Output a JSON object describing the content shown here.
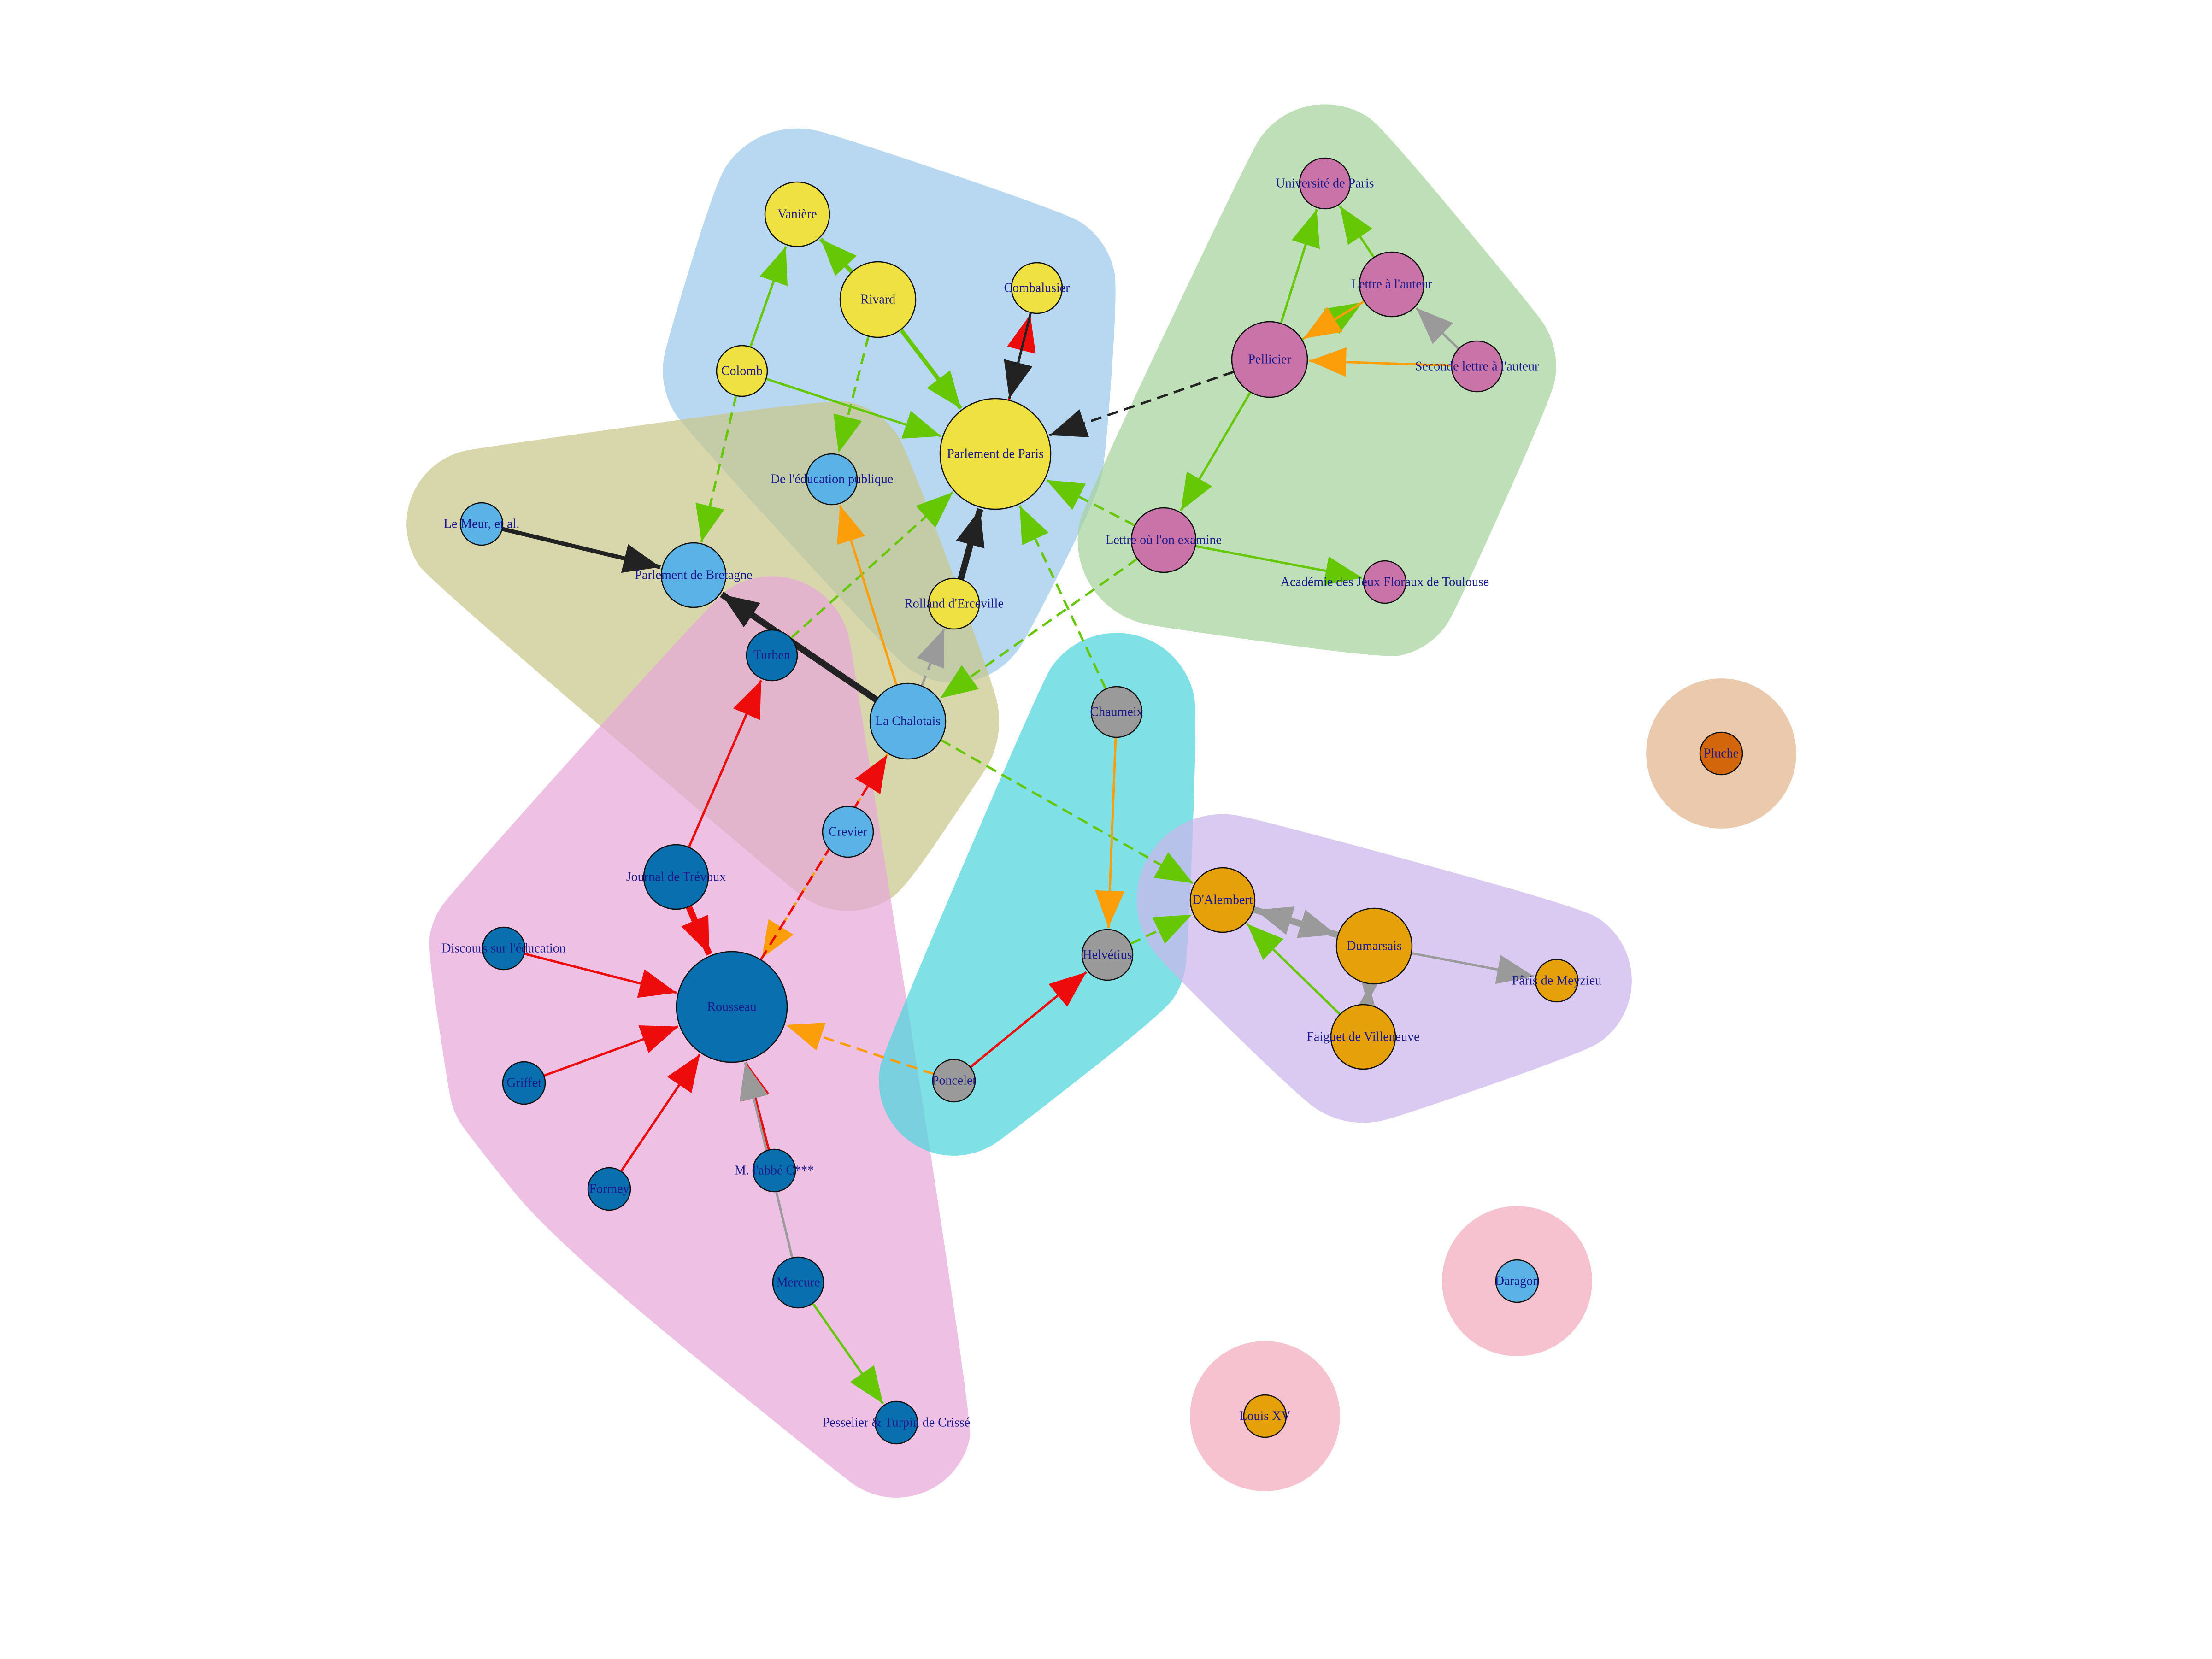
{
  "colors": {
    "community_blue": "#9cc8ec",
    "community_green": "#a6d39c",
    "community_olive": "#c9c68a",
    "community_pink": "#e8a8da",
    "community_cyan": "#4dd6dc",
    "community_purple": "#ccb5ec",
    "community_tan": "#e3b48e",
    "community_rose": "#f2aabd",
    "node_yellow": "#efe142",
    "node_magenta": "#c973a8",
    "node_light_blue": "#5ab2e6",
    "node_dark_blue": "#0a6fae",
    "node_gray": "#9a9a9a",
    "node_orange": "#e5a00a",
    "node_dark_orange": "#d3650a",
    "edge_green": "#66c805",
    "edge_red": "#ee0b0b",
    "edge_orange": "#fb9e0a",
    "edge_black": "#222222",
    "edge_gray": "#9a9a9a",
    "label_text": "#1a1a8c"
  },
  "communities": [
    {
      "id": "blue",
      "color": "community_blue",
      "members": [
        "vaniere",
        "rivard",
        "combalusier",
        "colomb",
        "parlement_paris",
        "rolland"
      ]
    },
    {
      "id": "green",
      "color": "community_green",
      "members": [
        "universite",
        "lettre_auteur",
        "pellicier",
        "seconde_lettre",
        "lettre_examine",
        "academie"
      ]
    },
    {
      "id": "olive",
      "color": "community_olive",
      "members": [
        "le_meur",
        "parlement_bretagne",
        "education_publique",
        "la_chalotais",
        "crevier"
      ]
    },
    {
      "id": "pink",
      "color": "community_pink",
      "members": [
        "turben",
        "journal_trevoux",
        "discours",
        "rousseau",
        "griffet",
        "formey",
        "abbe",
        "mercure",
        "pesselier"
      ]
    },
    {
      "id": "cyan",
      "color": "community_cyan",
      "members": [
        "chaumeix",
        "helvetius",
        "poncelet"
      ]
    },
    {
      "id": "purple",
      "color": "community_purple",
      "members": [
        "dalembert",
        "dumarsais",
        "paris_meyzieu",
        "faiguet"
      ]
    },
    {
      "id": "tan",
      "color": "community_tan",
      "members": [
        "pluche"
      ]
    },
    {
      "id": "rose1",
      "color": "community_rose",
      "members": [
        "daragon"
      ]
    },
    {
      "id": "rose2",
      "color": "community_rose",
      "members": [
        "louis_xv"
      ]
    }
  ],
  "nodes": [
    {
      "id": "vaniere",
      "label": "Vanière",
      "color": "node_yellow",
      "size": "medium"
    },
    {
      "id": "rivard",
      "label": "Rivard",
      "color": "node_yellow",
      "size": "large"
    },
    {
      "id": "combalusier",
      "label": "Combalusier",
      "color": "node_yellow",
      "size": "small"
    },
    {
      "id": "colomb",
      "label": "Colomb",
      "color": "node_yellow",
      "size": "small"
    },
    {
      "id": "parlement_paris",
      "label": "Parlement de Paris",
      "color": "node_yellow",
      "size": "xlarge"
    },
    {
      "id": "rolland",
      "label": "Rolland d'Erceville",
      "color": "node_yellow",
      "size": "small"
    },
    {
      "id": "universite",
      "label": "Université de Paris",
      "color": "node_magenta",
      "size": "small"
    },
    {
      "id": "lettre_auteur",
      "label": "Lettre à l'auteur",
      "color": "node_magenta",
      "size": "medium"
    },
    {
      "id": "pellicier",
      "label": "Pellicier",
      "color": "node_magenta",
      "size": "large"
    },
    {
      "id": "seconde_lettre",
      "label": "Seconde lettre à l'auteur",
      "color": "node_magenta",
      "size": "small"
    },
    {
      "id": "lettre_examine",
      "label": "Lettre où l'on examine",
      "color": "node_magenta",
      "size": "medium"
    },
    {
      "id": "academie",
      "label": "Académie des Jeux Floraux de Toulouse",
      "color": "node_magenta",
      "size": "tiny"
    },
    {
      "id": "le_meur",
      "label": "Le Meur, et al.",
      "color": "node_light_blue",
      "size": "tiny"
    },
    {
      "id": "parlement_bretagne",
      "label": "Parlement de Bretagne",
      "color": "node_light_blue",
      "size": "medium"
    },
    {
      "id": "education_publique",
      "label": "De l'éducation publique",
      "color": "node_light_blue",
      "size": "small"
    },
    {
      "id": "la_chalotais",
      "label": "La Chalotais",
      "color": "node_light_blue",
      "size": "large"
    },
    {
      "id": "crevier",
      "label": "Crevier",
      "color": "node_light_blue",
      "size": "small"
    },
    {
      "id": "turben",
      "label": "Turben",
      "color": "node_dark_blue",
      "size": "small"
    },
    {
      "id": "journal_trevoux",
      "label": "Journal de Trévoux",
      "color": "node_dark_blue",
      "size": "medium"
    },
    {
      "id": "discours",
      "label": "Discours sur l'éducation",
      "color": "node_dark_blue",
      "size": "tiny"
    },
    {
      "id": "rousseau",
      "label": "Rousseau",
      "color": "node_dark_blue",
      "size": "xlarge"
    },
    {
      "id": "griffet",
      "label": "Griffet",
      "color": "node_dark_blue",
      "size": "tiny"
    },
    {
      "id": "formey",
      "label": "Formey",
      "color": "node_dark_blue",
      "size": "tiny"
    },
    {
      "id": "abbe",
      "label": "M. l'abbé C***",
      "color": "node_dark_blue",
      "size": "tiny"
    },
    {
      "id": "mercure",
      "label": "Mercure",
      "color": "node_dark_blue",
      "size": "small"
    },
    {
      "id": "pesselier",
      "label": "Pesselier & Turpin de Crissé",
      "color": "node_dark_blue",
      "size": "tiny"
    },
    {
      "id": "chaumeix",
      "label": "Chaumeix",
      "color": "node_gray",
      "size": "small"
    },
    {
      "id": "helvetius",
      "label": "Helvétius",
      "color": "node_gray",
      "size": "small"
    },
    {
      "id": "poncelet",
      "label": "Poncelet",
      "color": "node_gray",
      "size": "tiny"
    },
    {
      "id": "dalembert",
      "label": "D'Alembert",
      "color": "node_orange",
      "size": "medium"
    },
    {
      "id": "dumarsais",
      "label": "Dumarsais",
      "color": "node_orange",
      "size": "large"
    },
    {
      "id": "paris_meyzieu",
      "label": "Pâris de Meyzieu",
      "color": "node_orange",
      "size": "tiny"
    },
    {
      "id": "faiguet",
      "label": "Faiguet de Villeneuve",
      "color": "node_orange",
      "size": "medium"
    },
    {
      "id": "pluche",
      "label": "Pluche",
      "color": "node_dark_orange",
      "size": "tiny"
    },
    {
      "id": "daragon",
      "label": "Daragon",
      "color": "node_light_blue",
      "size": "tiny"
    },
    {
      "id": "louis_xv",
      "label": "Louis XV",
      "color": "node_orange",
      "size": "tiny"
    }
  ],
  "edges": [
    {
      "from": "colomb",
      "to": "vaniere",
      "color": "edge_green",
      "style": "solid",
      "weight": 1
    },
    {
      "from": "rivard",
      "to": "vaniere",
      "color": "edge_green",
      "style": "solid",
      "weight": 2
    },
    {
      "from": "rivard",
      "to": "parlement_paris",
      "color": "edge_green",
      "style": "solid",
      "weight": 2
    },
    {
      "from": "rivard",
      "to": "education_publique",
      "color": "edge_green",
      "style": "dashed",
      "weight": 1
    },
    {
      "from": "colomb",
      "to": "parlement_paris",
      "color": "edge_green",
      "style": "solid",
      "weight": 1
    },
    {
      "from": "colomb",
      "to": "parlement_bretagne",
      "color": "edge_green",
      "style": "dashed",
      "weight": 1
    },
    {
      "from": "parlement_paris",
      "to": "combalusier",
      "color": "edge_red",
      "style": "solid",
      "weight": 1
    },
    {
      "from": "combalusier",
      "to": "parlement_paris",
      "color": "edge_black",
      "style": "solid",
      "weight": 1
    },
    {
      "from": "rolland",
      "to": "parlement_paris",
      "color": "edge_black",
      "style": "solid",
      "weight": 3
    },
    {
      "from": "pellicier",
      "to": "parlement_paris",
      "color": "edge_black",
      "style": "dashed",
      "weight": 1
    },
    {
      "from": "lettre_examine",
      "to": "parlement_paris",
      "color": "edge_green",
      "style": "dashed",
      "weight": 1
    },
    {
      "from": "chaumeix",
      "to": "parlement_paris",
      "color": "edge_green",
      "style": "dashed",
      "weight": 1
    },
    {
      "from": "turben",
      "to": "parlement_paris",
      "color": "edge_green",
      "style": "dashed",
      "weight": 1
    },
    {
      "from": "pellicier",
      "to": "universite",
      "color": "edge_green",
      "style": "solid",
      "weight": 1
    },
    {
      "from": "lettre_auteur",
      "to": "universite",
      "color": "edge_green",
      "style": "solid",
      "weight": 1
    },
    {
      "from": "pellicier",
      "to": "lettre_auteur",
      "color": "edge_green",
      "style": "solid",
      "weight": 1
    },
    {
      "from": "lettre_auteur",
      "to": "pellicier",
      "color": "edge_orange",
      "style": "solid",
      "weight": 1
    },
    {
      "from": "seconde_lettre",
      "to": "pellicier",
      "color": "edge_orange",
      "style": "solid",
      "weight": 1
    },
    {
      "from": "seconde_lettre",
      "to": "lettre_auteur",
      "color": "edge_gray",
      "style": "solid",
      "weight": 1
    },
    {
      "from": "pellicier",
      "to": "lettre_examine",
      "color": "edge_green",
      "style": "solid",
      "weight": 1
    },
    {
      "from": "lettre_examine",
      "to": "academie",
      "color": "edge_green",
      "style": "solid",
      "weight": 1
    },
    {
      "from": "lettre_examine",
      "to": "la_chalotais",
      "color": "edge_green",
      "style": "dashed",
      "weight": 1
    },
    {
      "from": "le_meur",
      "to": "parlement_bretagne",
      "color": "edge_black",
      "style": "solid",
      "weight": 2
    },
    {
      "from": "la_chalotais",
      "to": "parlement_bretagne",
      "color": "edge_black",
      "style": "solid",
      "weight": 3
    },
    {
      "from": "la_chalotais",
      "to": "education_publique",
      "color": "edge_orange",
      "style": "solid",
      "weight": 1
    },
    {
      "from": "la_chalotais",
      "to": "rolland",
      "color": "edge_gray",
      "style": "dashed",
      "weight": 1
    },
    {
      "from": "la_chalotais",
      "to": "dalembert",
      "color": "edge_green",
      "style": "dashed",
      "weight": 1
    },
    {
      "from": "la_chalotais",
      "to": "rousseau",
      "color": "edge_orange",
      "style": "dashed",
      "weight": 1
    },
    {
      "from": "rousseau",
      "to": "la_chalotais",
      "color": "edge_red",
      "style": "dashed",
      "weight": 1
    },
    {
      "from": "journal_trevoux",
      "to": "turben",
      "color": "edge_red",
      "style": "solid",
      "weight": 1
    },
    {
      "from": "journal_trevoux",
      "to": "rousseau",
      "color": "edge_red",
      "style": "solid",
      "weight": 3
    },
    {
      "from": "discours",
      "to": "rousseau",
      "color": "edge_red",
      "style": "solid",
      "weight": 1
    },
    {
      "from": "griffet",
      "to": "rousseau",
      "color": "edge_red",
      "style": "solid",
      "weight": 1
    },
    {
      "from": "formey",
      "to": "rousseau",
      "color": "edge_red",
      "style": "solid",
      "weight": 1
    },
    {
      "from": "abbe",
      "to": "rousseau",
      "color": "edge_red",
      "style": "solid",
      "weight": 1
    },
    {
      "from": "mercure",
      "to": "rousseau",
      "color": "edge_gray",
      "style": "solid",
      "weight": 1
    },
    {
      "from": "mercure",
      "to": "pesselier",
      "color": "edge_green",
      "style": "solid",
      "weight": 1
    },
    {
      "from": "poncelet",
      "to": "rousseau",
      "color": "edge_orange",
      "style": "dashed",
      "weight": 1
    },
    {
      "from": "poncelet",
      "to": "helvetius",
      "color": "edge_red",
      "style": "solid",
      "weight": 1
    },
    {
      "from": "chaumeix",
      "to": "helvetius",
      "color": "edge_orange",
      "style": "solid",
      "weight": 1
    },
    {
      "from": "helvetius",
      "to": "dalembert",
      "color": "edge_green",
      "style": "dashed",
      "weight": 1
    },
    {
      "from": "dalembert",
      "to": "dumarsais",
      "color": "edge_gray",
      "style": "solid",
      "weight": 3
    },
    {
      "from": "dumarsais",
      "to": "dalembert",
      "color": "edge_gray",
      "style": "solid",
      "weight": 3
    },
    {
      "from": "dumarsais",
      "to": "paris_meyzieu",
      "color": "edge_gray",
      "style": "solid",
      "weight": 1
    },
    {
      "from": "dumarsais",
      "to": "faiguet",
      "color": "edge_gray",
      "style": "solid",
      "weight": 3
    },
    {
      "from": "faiguet",
      "to": "dumarsais",
      "color": "edge_gray",
      "style": "solid",
      "weight": 3
    },
    {
      "from": "faiguet",
      "to": "dalembert",
      "color": "edge_green",
      "style": "solid",
      "weight": 1
    }
  ]
}
